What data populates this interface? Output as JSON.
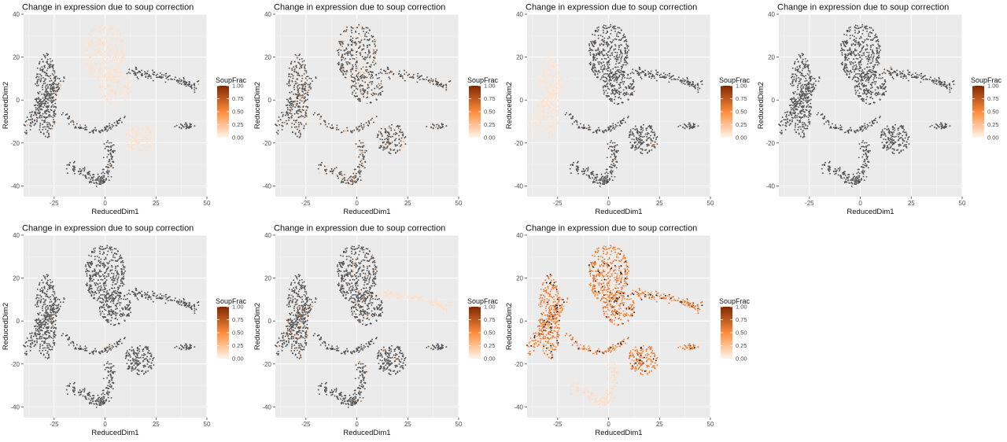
{
  "figure": {
    "title": "Change in expression due to soup correction"
  },
  "chart_data": [
    {
      "type": "scatter",
      "title": "Change in expression due to soup correction",
      "xlabel": "ReducedDim1",
      "ylabel": "ReducedDim2",
      "xlim": [
        -40,
        50
      ],
      "ylim": [
        -45,
        40
      ],
      "x_ticks": [
        -25,
        0,
        25,
        50
      ],
      "y_ticks": [
        -40,
        -20,
        0,
        20,
        40
      ],
      "x_tick_labels": [
        "-25",
        "0",
        "25",
        "50"
      ],
      "y_tick_labels": [
        "-40",
        "-20",
        "0",
        "20",
        "40"
      ],
      "grid": true,
      "legend": {
        "title": "SoupFrac",
        "placement": "right",
        "range": [
          0,
          1
        ],
        "ticks": [
          "1.00",
          "0.75",
          "0.50",
          "0.25",
          "0.00"
        ]
      },
      "color_scale": {
        "low": "#fff5eb",
        "mid": "#fd8d3c",
        "high": "#7f2704",
        "na_color": "#555555"
      },
      "highlight_clusters": [
        "top_center",
        "center_mid",
        "bottom_center"
      ],
      "highlight_level": 0.06,
      "other_level": null,
      "speckle_level": 0.4,
      "speckle_fraction": 0.01
    },
    {
      "type": "scatter",
      "title": "Change in expression due to soup correction",
      "xlabel": "ReducedDim1",
      "ylabel": "ReducedDim2",
      "xlim": [
        -40,
        50
      ],
      "ylim": [
        -45,
        40
      ],
      "x_ticks": [
        -25,
        0,
        25,
        50
      ],
      "y_ticks": [
        -40,
        -20,
        0,
        20,
        40
      ],
      "x_tick_labels": [
        "-25",
        "0",
        "25",
        "50"
      ],
      "y_tick_labels": [
        "-40",
        "-20",
        "0",
        "20",
        "40"
      ],
      "grid": true,
      "legend": {
        "title": "SoupFrac",
        "placement": "right",
        "range": [
          0,
          1
        ],
        "ticks": [
          "1.00",
          "0.75",
          "0.50",
          "0.25",
          "0.00"
        ]
      },
      "color_scale": {
        "low": "#fff5eb",
        "mid": "#fd8d3c",
        "high": "#7f2704",
        "na_color": "#555555"
      },
      "highlight_clusters": [],
      "highlight_level": 0,
      "other_level": null,
      "mixed_fraction": 0.28,
      "mixed_level": 0.08,
      "speckle_level": 0.55,
      "speckle_fraction": 0.015
    },
    {
      "type": "scatter",
      "title": "Change in expression due to soup correction",
      "xlabel": "ReducedDim1",
      "ylabel": "ReducedDim2",
      "xlim": [
        -40,
        50
      ],
      "ylim": [
        -45,
        40
      ],
      "x_ticks": [
        -25,
        0,
        25,
        50
      ],
      "y_ticks": [
        -40,
        -20,
        0,
        20,
        40
      ],
      "x_tick_labels": [
        "-25",
        "0",
        "25",
        "50"
      ],
      "y_tick_labels": [
        "-40",
        "-20",
        "0",
        "20",
        "40"
      ],
      "grid": true,
      "legend": {
        "title": "SoupFrac",
        "placement": "right",
        "range": [
          0,
          1
        ],
        "ticks": [
          "1.00",
          "0.75",
          "0.50",
          "0.25",
          "0.00"
        ]
      },
      "color_scale": {
        "low": "#fff5eb",
        "mid": "#fd8d3c",
        "high": "#7f2704",
        "na_color": "#555555"
      },
      "highlight_clusters": [
        "left_tall",
        "left_arm"
      ],
      "highlight_level": 0.05,
      "other_level": null,
      "speckle_level": 0.6,
      "speckle_fraction": 0.012
    },
    {
      "type": "scatter",
      "title": "Change in expression due to soup correction",
      "xlabel": "ReducedDim1",
      "ylabel": "ReducedDim2",
      "xlim": [
        -40,
        50
      ],
      "ylim": [
        -45,
        40
      ],
      "x_ticks": [
        -25,
        0,
        25,
        50
      ],
      "y_ticks": [
        -40,
        -20,
        0,
        20,
        40
      ],
      "x_tick_labels": [
        "-25",
        "0",
        "25",
        "50"
      ],
      "y_tick_labels": [
        "-40",
        "-20",
        "0",
        "20",
        "40"
      ],
      "grid": true,
      "legend": {
        "title": "SoupFrac",
        "placement": "right",
        "range": [
          0,
          1
        ],
        "ticks": [
          "1.00",
          "0.75",
          "0.50",
          "0.25",
          "0.00"
        ]
      },
      "color_scale": {
        "low": "#fff5eb",
        "mid": "#fd8d3c",
        "high": "#7f2704",
        "na_color": "#555555"
      },
      "highlight_clusters": [],
      "highlight_level": 0,
      "other_level": null,
      "speckle_level": 0.3,
      "speckle_fraction": 0.004
    },
    {
      "type": "scatter",
      "title": "Change in expression due to soup correction",
      "xlabel": "ReducedDim1",
      "ylabel": "ReducedDim2",
      "xlim": [
        -40,
        50
      ],
      "ylim": [
        -45,
        40
      ],
      "x_ticks": [
        -25,
        0,
        25,
        50
      ],
      "y_ticks": [
        -40,
        -20,
        0,
        20,
        40
      ],
      "x_tick_labels": [
        "-25",
        "0",
        "25",
        "50"
      ],
      "y_tick_labels": [
        "-40",
        "-20",
        "0",
        "20",
        "40"
      ],
      "grid": true,
      "legend": {
        "title": "SoupFrac",
        "placement": "right",
        "range": [
          0,
          1
        ],
        "ticks": [
          "1.00",
          "0.75",
          "0.50",
          "0.25",
          "0.00"
        ]
      },
      "color_scale": {
        "low": "#fff5eb",
        "mid": "#fd8d3c",
        "high": "#7f2704",
        "na_color": "#555555"
      },
      "highlight_clusters": [],
      "highlight_level": 0,
      "other_level": null,
      "speckle_level": 0.3,
      "speckle_fraction": 0.003
    },
    {
      "type": "scatter",
      "title": "Change in expression due to soup correction",
      "xlabel": "ReducedDim1",
      "ylabel": "ReducedDim2",
      "xlim": [
        -40,
        50
      ],
      "ylim": [
        -45,
        40
      ],
      "x_ticks": [
        -25,
        0,
        25,
        50
      ],
      "y_ticks": [
        -40,
        -20,
        0,
        20,
        40
      ],
      "x_tick_labels": [
        "-25",
        "0",
        "25",
        "50"
      ],
      "y_tick_labels": [
        "-40",
        "-20",
        "0",
        "20",
        "40"
      ],
      "grid": true,
      "legend": {
        "title": "SoupFrac",
        "placement": "right",
        "range": [
          0,
          1
        ],
        "ticks": [
          "1.00",
          "0.75",
          "0.50",
          "0.25",
          "0.00"
        ]
      },
      "color_scale": {
        "low": "#fff5eb",
        "mid": "#fd8d3c",
        "high": "#7f2704",
        "na_color": "#555555"
      },
      "highlight_clusters": [
        "right_arm"
      ],
      "highlight_level": 0.07,
      "other_level": null,
      "speckle_level": 0.5,
      "speckle_fraction": 0.04
    },
    {
      "type": "scatter",
      "title": "Change in expression due to soup correction",
      "xlabel": "ReducedDim1",
      "ylabel": "ReducedDim2",
      "xlim": [
        -40,
        50
      ],
      "ylim": [
        -45,
        40
      ],
      "x_ticks": [
        -25,
        0,
        25,
        50
      ],
      "y_ticks": [
        -40,
        -20,
        0,
        20,
        40
      ],
      "x_tick_labels": [
        "-25",
        "0",
        "25",
        "50"
      ],
      "y_tick_labels": [
        "-40",
        "-20",
        "0",
        "20",
        "40"
      ],
      "grid": true,
      "legend": {
        "title": "SoupFrac",
        "placement": "right",
        "range": [
          0,
          1
        ],
        "ticks": [
          "1.00",
          "0.75",
          "0.50",
          "0.25",
          "0.00"
        ]
      },
      "color_scale": {
        "low": "#fff5eb",
        "mid": "#fd8d3c",
        "high": "#7f2704",
        "na_color": "#555555"
      },
      "highlight_clusters": [
        "bottom_band"
      ],
      "highlight_level": 0.08,
      "other_level": 0.55,
      "other_dark_fraction": 0.12,
      "speckle_level": 0.9,
      "speckle_fraction": 0.05
    }
  ]
}
